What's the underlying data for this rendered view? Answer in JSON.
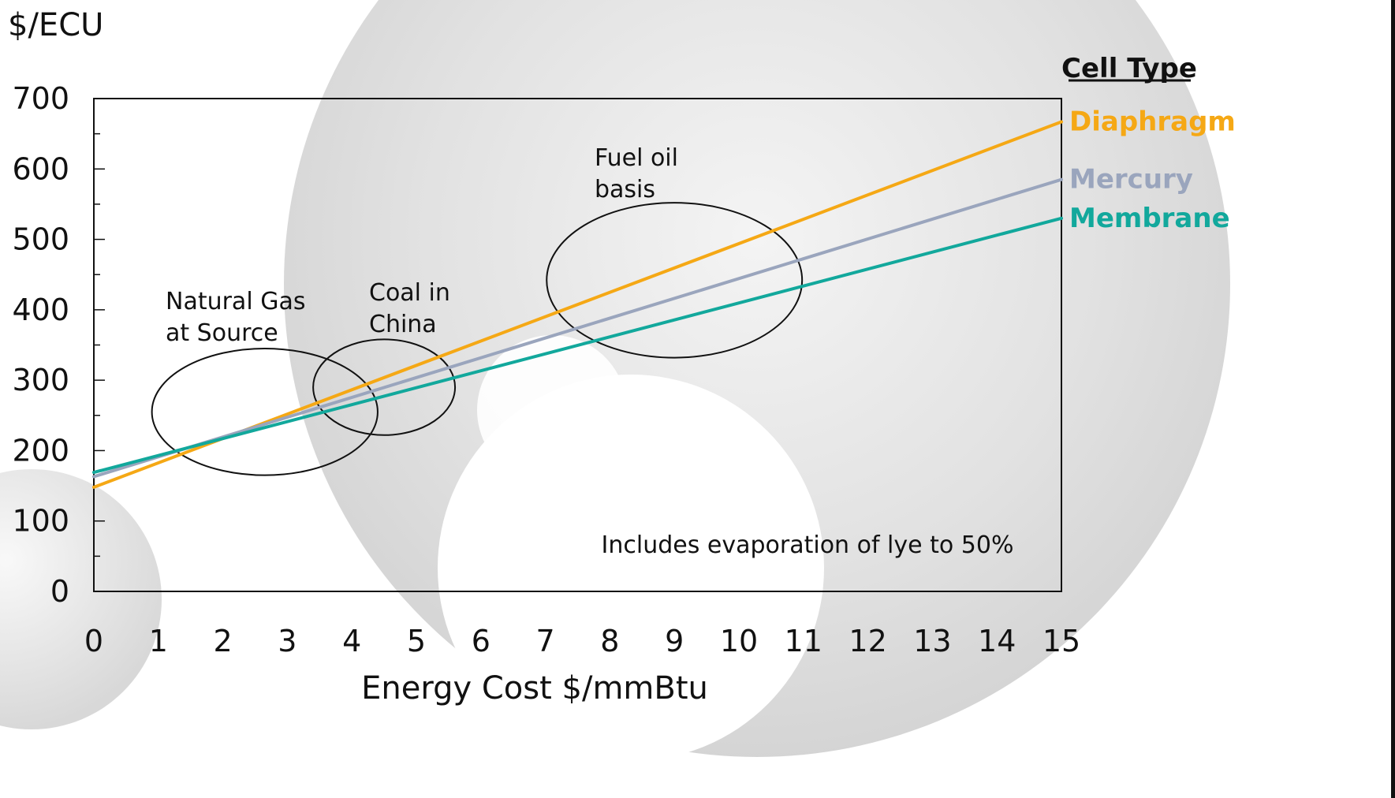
{
  "chart_data": {
    "type": "line",
    "ylabel": "$/ECU",
    "xlabel": "Energy Cost $/mmBtu",
    "xlim": [
      0,
      15
    ],
    "ylim": [
      0,
      700
    ],
    "x_ticks": [
      0,
      1,
      2,
      3,
      4,
      5,
      6,
      7,
      8,
      9,
      10,
      11,
      12,
      13,
      14,
      15
    ],
    "y_ticks": [
      0,
      100,
      200,
      300,
      400,
      500,
      600,
      700
    ],
    "legend": {
      "title": "Cell Type",
      "placement": "right"
    },
    "series": [
      {
        "name": "Diaphragm",
        "color": "#F5A815",
        "x": [
          0,
          15
        ],
        "y": [
          148,
          667
        ]
      },
      {
        "name": "Mercury",
        "color": "#9AA5BD",
        "x": [
          0,
          15
        ],
        "y": [
          163,
          585
        ]
      },
      {
        "name": "Membrane",
        "color": "#12A89C",
        "x": [
          0,
          15
        ],
        "y": [
          169,
          530
        ]
      }
    ],
    "regions": [
      {
        "label_lines": [
          "Natural Gas",
          "at Source"
        ],
        "center": [
          2.65,
          255
        ],
        "radius": [
          1.75,
          90
        ]
      },
      {
        "label_lines": [
          "Coal in",
          "China"
        ],
        "center": [
          4.5,
          290
        ],
        "radius": [
          1.1,
          68
        ]
      },
      {
        "label_lines": [
          "Fuel oil",
          "basis"
        ],
        "center": [
          9.0,
          442
        ],
        "radius": [
          1.98,
          110
        ]
      }
    ],
    "annotation": "Includes evaporation of lye to 50%"
  }
}
